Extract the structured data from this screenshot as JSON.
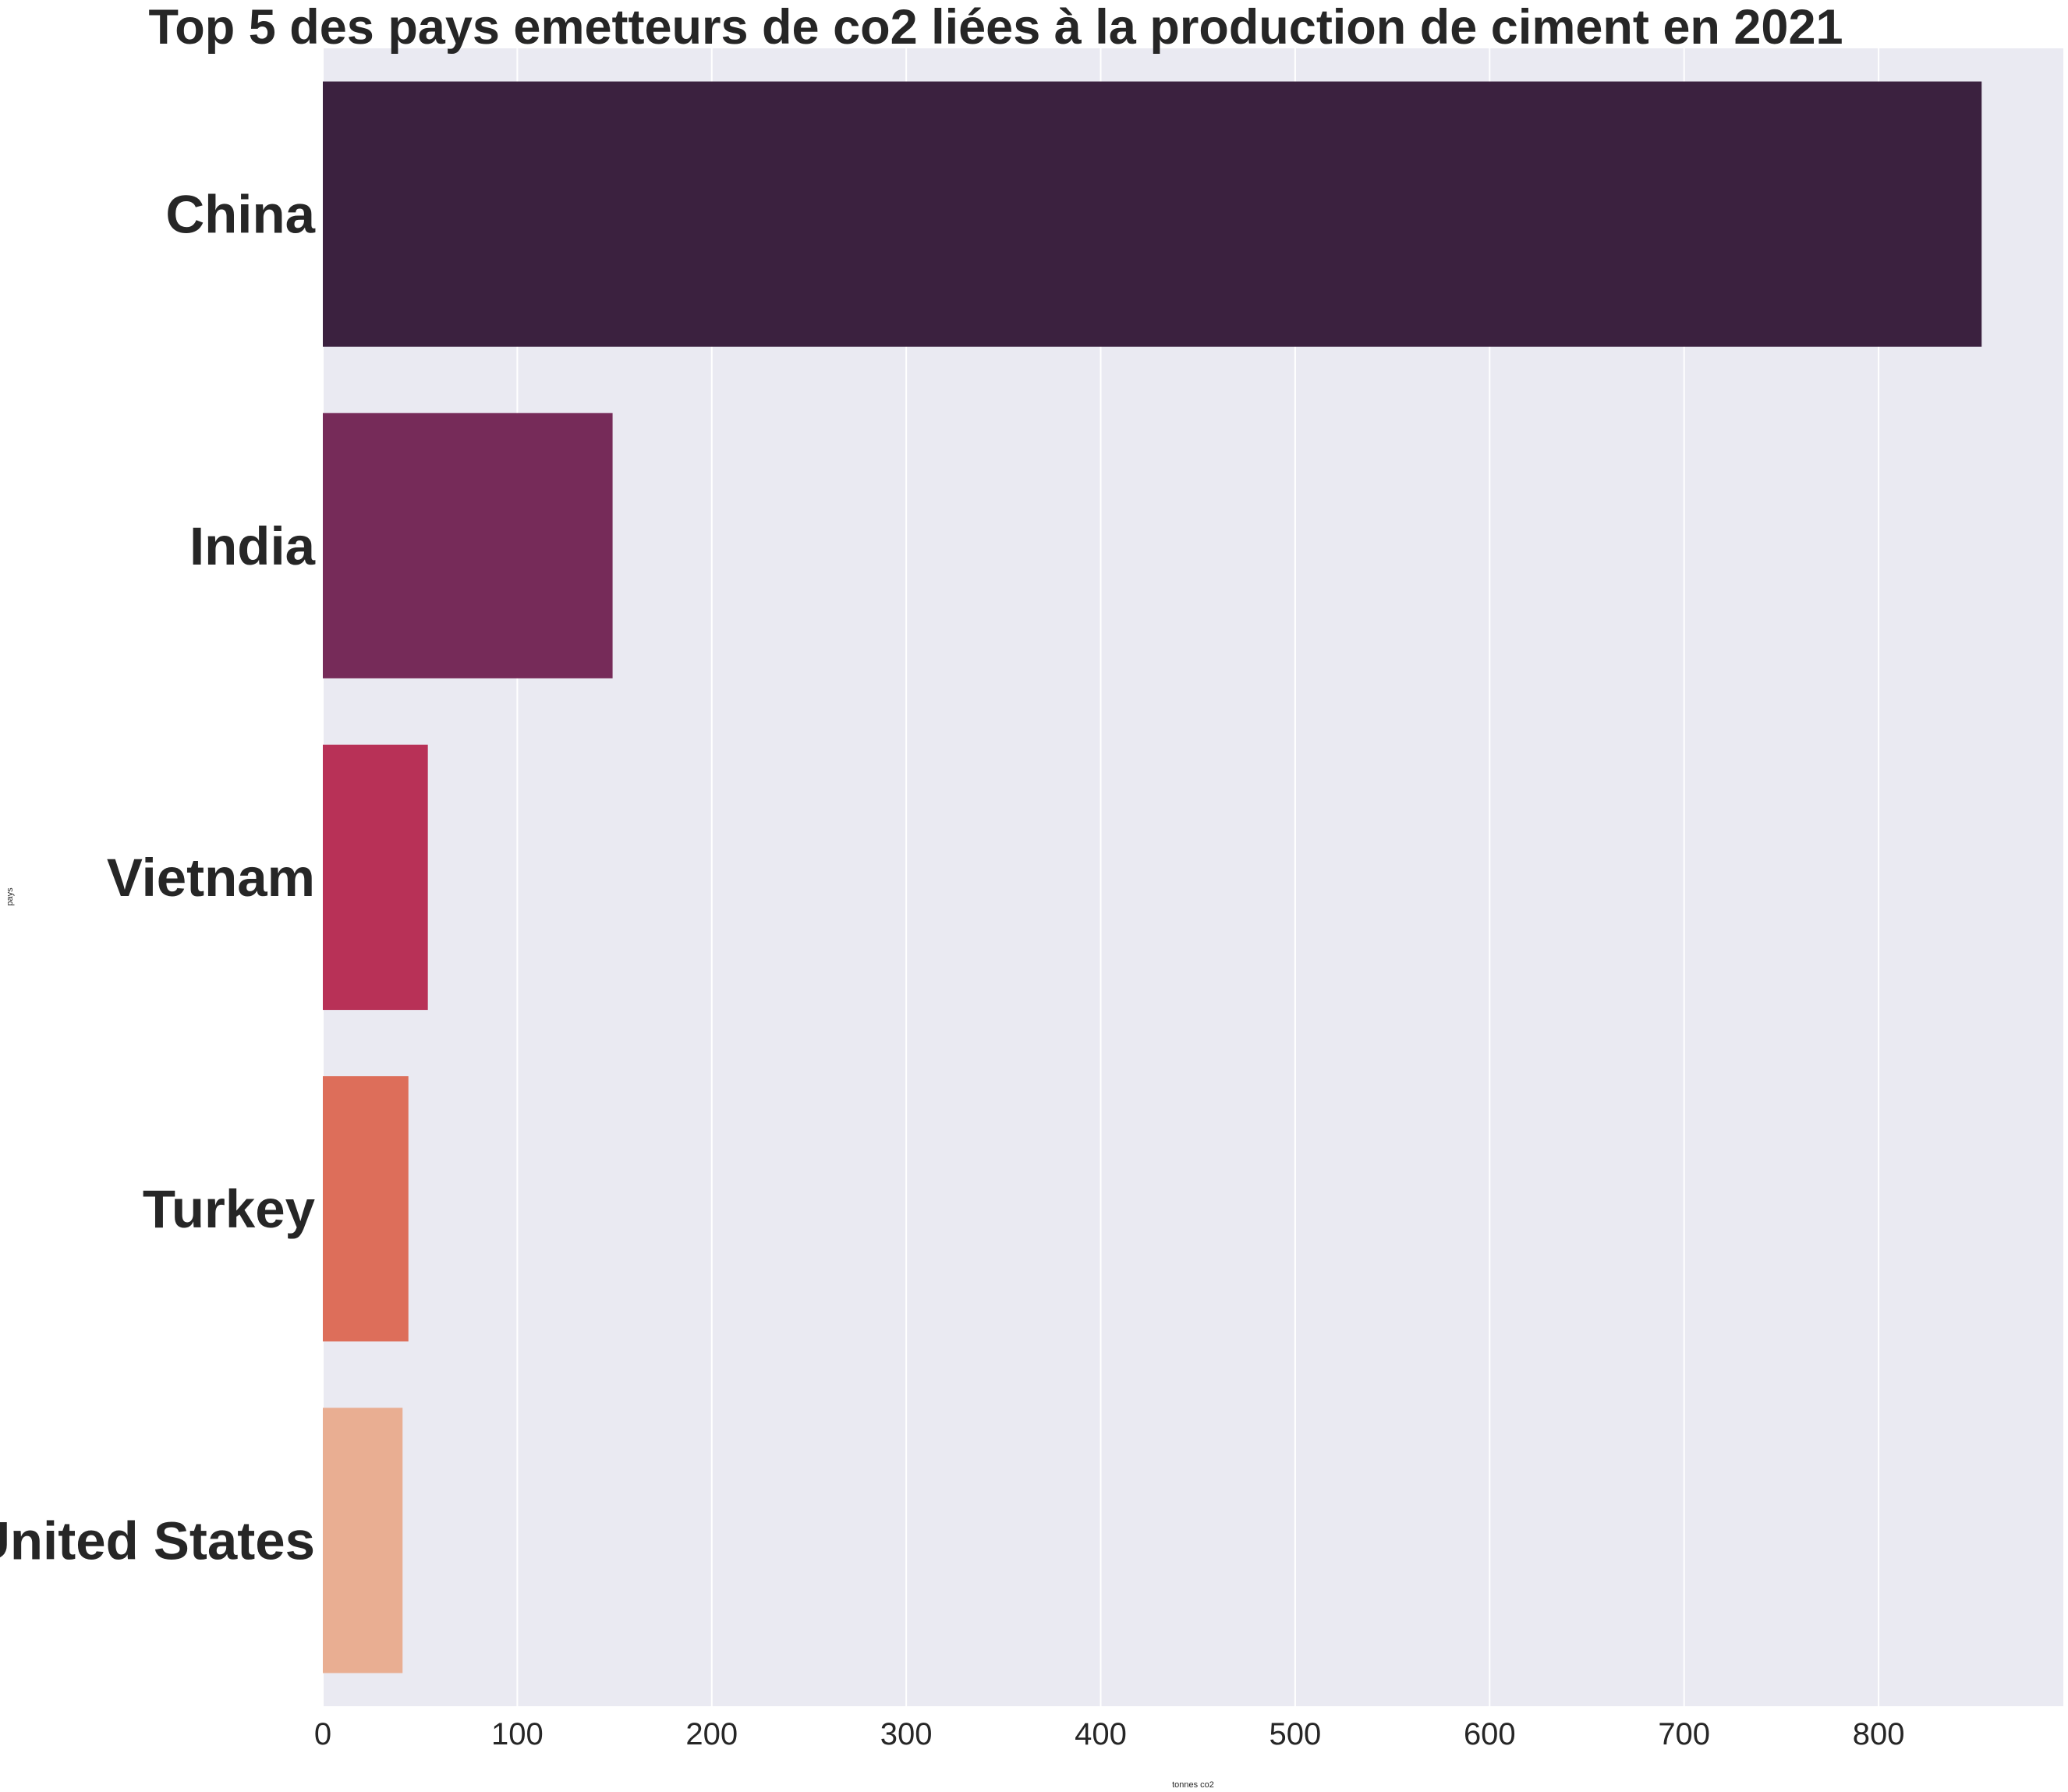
{
  "chart_data": {
    "type": "bar",
    "orientation": "horizontal",
    "title": "Top 5 des pays emetteurs de co2 liées à la production de ciment en 2021",
    "xlabel": "tonnes co2",
    "ylabel": "pays",
    "categories": [
      "China",
      "India",
      "Vietnam",
      "Turkey",
      "United States"
    ],
    "values": [
      853,
      149,
      54,
      44,
      41
    ],
    "colors": [
      "#3b213f",
      "#762b59",
      "#b83157",
      "#dd6e5a",
      "#e9ae92"
    ],
    "xlim": [
      0,
      895
    ],
    "xticks": [
      0,
      100,
      200,
      300,
      400,
      500,
      600,
      700,
      800
    ],
    "xtick_labels": [
      "0",
      "100",
      "200",
      "300",
      "400",
      "500",
      "600",
      "700",
      "800"
    ],
    "grid": true,
    "background": "#eaeaf2",
    "grid_color": "#ffffff"
  }
}
